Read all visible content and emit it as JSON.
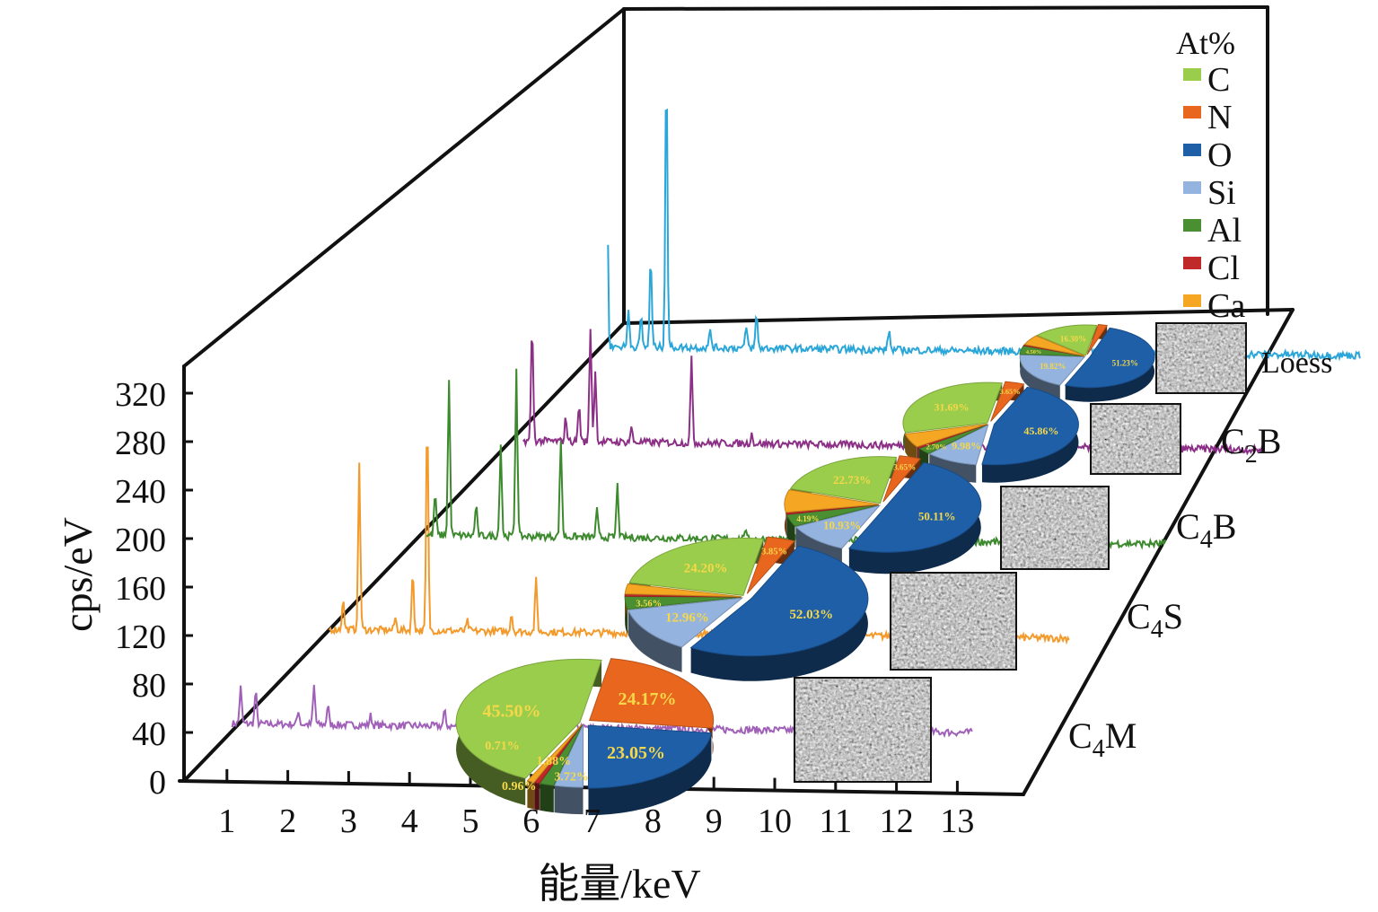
{
  "chart_data": {
    "type": "line",
    "subtype": "3d-stacked-spectra-with-pies",
    "xlabel": "能量/keV",
    "ylabel": "cps/eV",
    "x_ticks": [
      "1",
      "2",
      "3",
      "4",
      "5",
      "6",
      "7",
      "8",
      "9",
      "10",
      "11",
      "12",
      "13"
    ],
    "y_ticks": [
      "0",
      "40",
      "80",
      "120",
      "160",
      "200",
      "240",
      "280",
      "320"
    ],
    "xlim": [
      0.3,
      13.8
    ],
    "ylim": [
      0,
      340
    ],
    "legend": {
      "title": "At%",
      "placement": "top-right",
      "items": [
        {
          "label": "C",
          "color": "#9acd4c"
        },
        {
          "label": "N",
          "color": "#e8661e"
        },
        {
          "label": "O",
          "color": "#1f5fa8"
        },
        {
          "label": "Si",
          "color": "#94b3de"
        },
        {
          "label": "Al",
          "color": "#4a8f32"
        },
        {
          "label": "Cl",
          "color": "#c0282a"
        },
        {
          "label": "Ca",
          "color": "#f5a623"
        }
      ]
    },
    "series": [
      {
        "name": "C4M",
        "label_main": "C",
        "label_sub": "4",
        "label_tail": "M",
        "color": "#a060b8",
        "baseline": 48,
        "peaks": [
          [
            1.24,
            30
          ],
          [
            1.49,
            27
          ],
          [
            2.2,
            12
          ],
          [
            2.46,
            32
          ],
          [
            2.69,
            16
          ],
          [
            3.4,
            8
          ],
          [
            4.63,
            12
          ]
        ],
        "composition": {
          "C": 45.5,
          "N": 24.17,
          "O": 23.05,
          "Si": 3.72,
          "Al": 1.88,
          "Cl": 0.71,
          "Ca": 0.96
        },
        "labels": {
          "C": "45.50%",
          "N": "24.17%",
          "O": "23.05%",
          "Si": "3.72%",
          "Al": "1.88%",
          "Cl": "0.71%",
          "Ca": "0.96%"
        }
      },
      {
        "name": "C4S",
        "label_main": "C",
        "label_sub": "4",
        "label_tail": "S",
        "color": "#f39a2c",
        "baseline": 48,
        "peaks": [
          [
            1.33,
            25
          ],
          [
            1.6,
            138
          ],
          [
            2.2,
            10
          ],
          [
            2.49,
            47
          ],
          [
            2.73,
            176
          ],
          [
            3.4,
            8
          ],
          [
            4.13,
            15
          ],
          [
            4.54,
            43
          ]
        ],
        "composition": {
          "C": 24.2,
          "N": 3.85,
          "O": 52.03,
          "Si": 12.96,
          "Al": 3.56,
          "Cl": 0.6,
          "Ca": 2.8
        },
        "labels": {
          "C": "24.20%",
          "N": "3.85%",
          "O": "52.03%",
          "Si": "12.96%",
          "Al": "3.56%",
          "Cl": "",
          "Ca": ""
        }
      },
      {
        "name": "C4B",
        "label_main": "C",
        "label_sub": "4",
        "label_tail": "B",
        "color": "#3d8a2e",
        "baseline": 48,
        "peaks": [
          [
            1.25,
            35
          ],
          [
            1.48,
            128
          ],
          [
            1.93,
            25
          ],
          [
            2.34,
            76
          ],
          [
            2.6,
            139
          ],
          [
            3.34,
            80
          ],
          [
            3.94,
            22
          ],
          [
            4.28,
            43
          ],
          [
            6.4,
            8
          ]
        ],
        "composition": {
          "C": 22.73,
          "N": 3.65,
          "O": 50.11,
          "Si": 10.93,
          "Al": 4.19,
          "Cl": 0.6,
          "Ca": 7.79
        },
        "labels": {
          "C": "22.73%",
          "N": "3.65%",
          "O": "50.11%",
          "Si": "10.93%",
          "Al": "4.19%",
          "Cl": "",
          "Ca": ""
        }
      },
      {
        "name": "C2B",
        "label_main": "C",
        "label_sub": "2",
        "label_tail": "B",
        "color": "#8c2f86",
        "baseline": 48,
        "peaks": [
          [
            1.25,
            95
          ],
          [
            1.81,
            20
          ],
          [
            2.03,
            30
          ],
          [
            2.22,
            95
          ],
          [
            2.3,
            58
          ],
          [
            2.9,
            12
          ],
          [
            3.9,
            69
          ],
          [
            4.9,
            8
          ]
        ],
        "composition": {
          "C": 31.69,
          "N": 3.65,
          "O": 45.86,
          "Si": 9.98,
          "Al": 2.7,
          "Cl": 0.6,
          "Ca": 5.52
        },
        "labels": {
          "C": "31.69%",
          "N": "3.65%",
          "O": "45.86%",
          "Si": "9.98%",
          "Al": "2.70%",
          "Cl": "",
          "Ca": ""
        }
      },
      {
        "name": "Loess",
        "label_main": "Loess",
        "label_sub": "",
        "label_tail": "",
        "color": "#2aa6d8",
        "baseline": 48,
        "peaks": [
          [
            0.88,
            156
          ],
          [
            1.24,
            30
          ],
          [
            1.45,
            25
          ],
          [
            1.61,
            73
          ],
          [
            1.87,
            230
          ],
          [
            2.6,
            15
          ],
          [
            3.2,
            18
          ],
          [
            3.37,
            28
          ],
          [
            5.57,
            16
          ]
        ],
        "composition": {
          "C": 16.3,
          "N": 2.2,
          "O": 51.23,
          "Si": 19.82,
          "Al": 4.5,
          "Cl": 0.6,
          "Ca": 5.35
        },
        "labels": {
          "C": "16.30%",
          "N": "",
          "O": "51.23%",
          "Si": "19.82%",
          "Al": "4.50%",
          "Cl": "",
          "Ca": ""
        }
      }
    ]
  }
}
